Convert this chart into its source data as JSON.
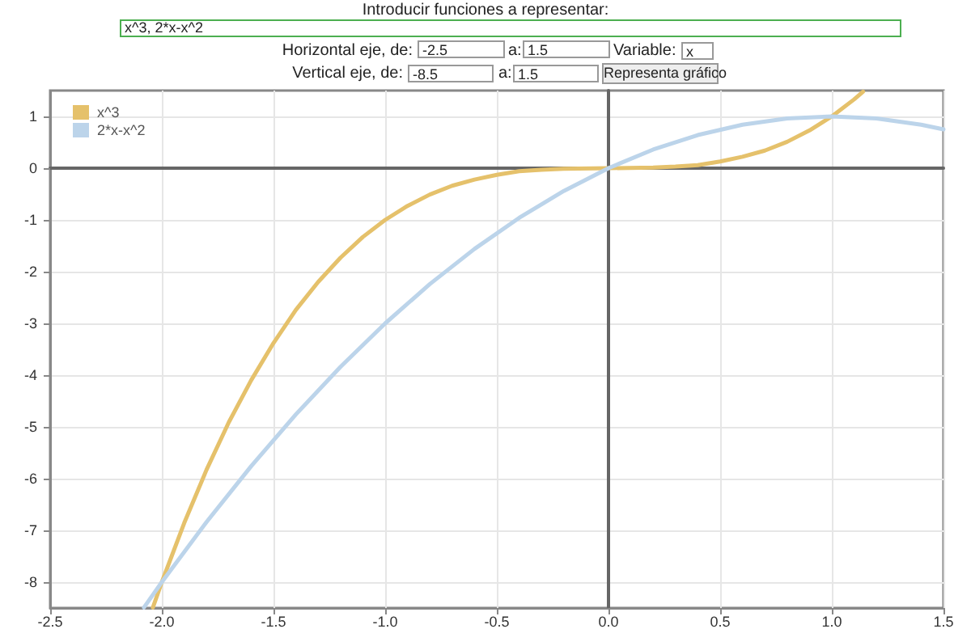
{
  "chart_data": {
    "type": "line",
    "title": "Introducir funciones a representar:",
    "annotations": [
      "x^3, 2*x-x^2",
      "Horizontal eje, de:",
      "-2.5",
      "a:",
      "1.5",
      "Variable:",
      "x",
      "Vertical eje, de:",
      "-8.5",
      "a:",
      "1.5",
      "Representa gráfico"
    ],
    "series": [
      {
        "name": "x^3",
        "color": "#e5c16b",
        "x": [
          -2.04,
          -2.0,
          -1.9,
          -1.8,
          -1.7,
          -1.6,
          -1.5,
          -1.4,
          -1.3,
          -1.2,
          -1.1,
          -1.0,
          -0.9,
          -0.8,
          -0.7,
          -0.6,
          -0.5,
          -0.4,
          -0.3,
          -0.2,
          0,
          0.2,
          0.3,
          0.4,
          0.5,
          0.6,
          0.7,
          0.8,
          0.9,
          1.0,
          1.1,
          1.14
        ],
        "values": [
          -8.49,
          -8,
          -6.86,
          -5.83,
          -4.91,
          -4.1,
          -3.38,
          -2.74,
          -2.2,
          -1.73,
          -1.33,
          -1,
          -0.73,
          -0.51,
          -0.34,
          -0.22,
          -0.13,
          -0.06,
          -0.03,
          -0.01,
          0,
          0.01,
          0.03,
          0.06,
          0.13,
          0.22,
          0.34,
          0.51,
          0.73,
          1,
          1.33,
          1.48
        ]
      },
      {
        "name": "2*x-x^2",
        "color": "#bcd4ea",
        "x": [
          -2.08,
          -2.0,
          -1.8,
          -1.6,
          -1.4,
          -1.2,
          -1.0,
          -0.8,
          -0.6,
          -0.4,
          -0.2,
          0,
          0.2,
          0.4,
          0.6,
          0.8,
          1.0,
          1.2,
          1.4,
          1.5
        ],
        "values": [
          -8.49,
          -8,
          -6.84,
          -5.76,
          -4.76,
          -3.84,
          -3,
          -2.24,
          -1.56,
          -0.96,
          -0.44,
          0,
          0.36,
          0.64,
          0.84,
          0.96,
          1,
          0.96,
          0.84,
          0.75
        ]
      }
    ],
    "xlim": [
      -2.5,
      1.5
    ],
    "xticks": [
      -2.5,
      {
        "value": -2,
        "label": "-2.0"
      },
      -1.5,
      {
        "value": -1,
        "label": "-1.0"
      },
      -0.5,
      {
        "value": 0,
        "label": "0.0"
      },
      0.5,
      {
        "value": 1,
        "label": "1.0"
      },
      1.5
    ],
    "ylim": [
      -8.5,
      1.5
    ],
    "yticks": [
      -8,
      -7,
      -6,
      -5,
      -4,
      -3,
      -2,
      -1,
      0,
      1
    ],
    "grid": true,
    "legend": "top left",
    "marker": "none",
    "line_style": "solid"
  }
}
